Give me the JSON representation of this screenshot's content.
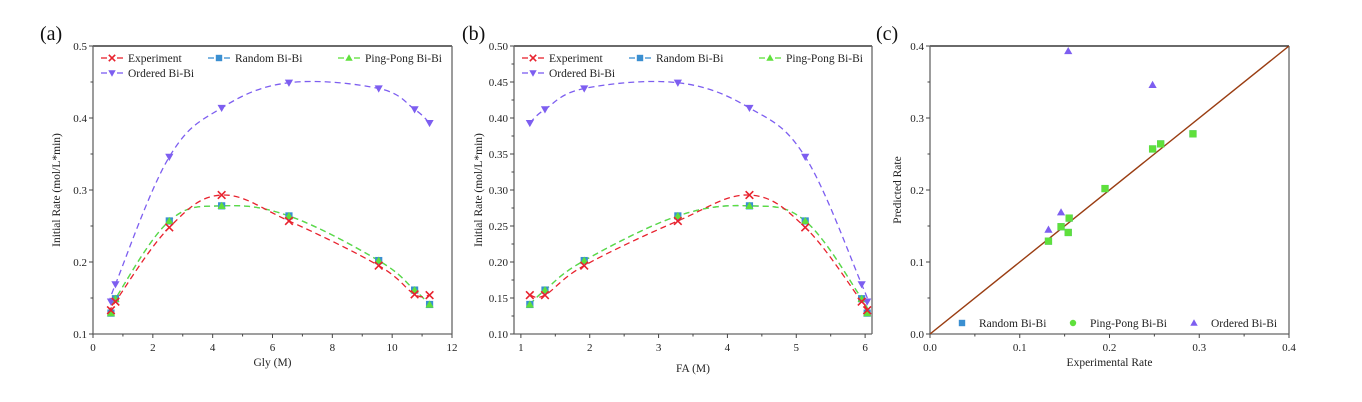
{
  "chart_data": [
    {
      "panel": "(a)",
      "type": "line",
      "title": "",
      "xlabel": "Gly (M)",
      "ylabel": "Initial Rate (mol/L*min)",
      "xlim": [
        0,
        12
      ],
      "ylim": [
        0.1,
        0.5
      ],
      "xticks": [
        0,
        2,
        4,
        6,
        8,
        10,
        12
      ],
      "xtick_labels": [
        "0",
        "2",
        "4",
        "6",
        "8",
        "10",
        "12"
      ],
      "yticks": [
        0.1,
        0.2,
        0.3,
        0.4,
        0.5
      ],
      "ytick_labels": [
        "0.1",
        "0.2",
        "0.3",
        "0.4",
        "0.5"
      ],
      "grid": false,
      "legend_position": "top",
      "series": [
        {
          "name": "Experiment",
          "marker": "x",
          "color": "#e8222e",
          "x": [
            0.6,
            0.75,
            2.55,
            4.3,
            6.55,
            9.55,
            10.75,
            11.25
          ],
          "y": [
            0.133,
            0.145,
            0.248,
            0.293,
            0.257,
            0.195,
            0.155,
            0.154
          ]
        },
        {
          "name": "Random Bi-Bi",
          "marker": "square",
          "color": "#3a8fd1",
          "x": [
            0.6,
            0.75,
            2.55,
            4.3,
            6.55,
            9.55,
            10.75,
            11.25
          ],
          "y": [
            0.129,
            0.149,
            0.257,
            0.278,
            0.264,
            0.202,
            0.161,
            0.141
          ]
        },
        {
          "name": "Ping-Pong Bi-Bi",
          "marker": "triangle-up",
          "color": "#5fe03c",
          "x": [
            0.6,
            0.75,
            2.55,
            4.3,
            6.55,
            9.55,
            10.75,
            11.25
          ],
          "y": [
            0.129,
            0.149,
            0.257,
            0.278,
            0.264,
            0.202,
            0.161,
            0.141
          ]
        },
        {
          "name": "Ordered Bi-Bi",
          "marker": "triangle-down",
          "color": "#7d5ef0",
          "x": [
            0.6,
            0.75,
            2.55,
            4.3,
            6.55,
            9.55,
            10.75,
            11.25
          ],
          "y": [
            0.145,
            0.169,
            0.346,
            0.414,
            0.449,
            0.441,
            0.412,
            0.393
          ]
        }
      ]
    },
    {
      "panel": "(b)",
      "type": "line",
      "title": "",
      "xlabel": "FA (M)",
      "ylabel": "Initial Rate (mol/L*min)",
      "xlim": [
        0.9,
        6.1
      ],
      "ylim": [
        0.1,
        0.5
      ],
      "xticks": [
        1,
        2,
        3,
        4,
        5,
        6
      ],
      "xtick_labels": [
        "1",
        "2",
        "3",
        "4",
        "5",
        "6"
      ],
      "yticks": [
        0.1,
        0.15,
        0.2,
        0.25,
        0.3,
        0.35,
        0.4,
        0.45,
        0.5
      ],
      "ytick_labels": [
        "0.10",
        "0.15",
        "0.20",
        "0.25",
        "0.30",
        "0.35",
        "0.40",
        "0.45",
        "0.50"
      ],
      "grid": false,
      "legend_position": "top",
      "series": [
        {
          "name": "Experiment",
          "marker": "x",
          "color": "#e8222e",
          "x": [
            1.13,
            1.35,
            1.92,
            3.28,
            4.32,
            5.13,
            5.95,
            6.03
          ],
          "y": [
            0.154,
            0.154,
            0.195,
            0.257,
            0.293,
            0.248,
            0.145,
            0.133
          ]
        },
        {
          "name": "Random Bi-Bi",
          "marker": "square",
          "color": "#3a8fd1",
          "x": [
            1.13,
            1.35,
            1.92,
            3.28,
            4.32,
            5.13,
            5.95,
            6.03
          ],
          "y": [
            0.141,
            0.161,
            0.202,
            0.264,
            0.278,
            0.257,
            0.149,
            0.129
          ]
        },
        {
          "name": "Ping-Pong Bi-Bi",
          "marker": "triangle-up",
          "color": "#5fe03c",
          "x": [
            1.13,
            1.35,
            1.92,
            3.28,
            4.32,
            5.13,
            5.95,
            6.03
          ],
          "y": [
            0.141,
            0.161,
            0.202,
            0.264,
            0.278,
            0.257,
            0.149,
            0.129
          ]
        },
        {
          "name": "Ordered Bi-Bi",
          "marker": "triangle-down",
          "color": "#7d5ef0",
          "x": [
            1.13,
            1.35,
            1.92,
            3.28,
            4.32,
            5.13,
            5.95,
            6.03
          ],
          "y": [
            0.393,
            0.412,
            0.441,
            0.449,
            0.414,
            0.346,
            0.169,
            0.145
          ]
        }
      ]
    },
    {
      "panel": "(c)",
      "type": "scatter",
      "title": "",
      "xlabel": "Experimental Rate",
      "ylabel": "Predicted Rate",
      "xlim": [
        0,
        0.4
      ],
      "ylim": [
        0,
        0.4
      ],
      "xticks": [
        0,
        0.1,
        0.2,
        0.3,
        0.4
      ],
      "xtick_labels": [
        "0.0",
        "0.1",
        "0.2",
        "0.3",
        "0.4"
      ],
      "yticks": [
        0,
        0.1,
        0.2,
        0.3,
        0.4
      ],
      "ytick_labels": [
        "0.0",
        "0.1",
        "0.2",
        "0.3",
        "0.4"
      ],
      "grid": false,
      "legend_position": "bottom",
      "reference_line": {
        "name": "y = x",
        "color": "#9a3d12",
        "from": [
          0,
          0
        ],
        "to": [
          0.4,
          0.4
        ]
      },
      "series": [
        {
          "name": "Random Bi-Bi",
          "marker": "square",
          "color": "#3a8fd1",
          "x": [
            0.132,
            0.146,
            0.154,
            0.155,
            0.195,
            0.248,
            0.257,
            0.293
          ],
          "y": [
            0.129,
            0.149,
            0.141,
            0.161,
            0.202,
            0.257,
            0.264,
            0.278
          ]
        },
        {
          "name": "Ping-Pong Bi-Bi",
          "marker": "circle",
          "color": "#5fe03c",
          "x": [
            0.132,
            0.146,
            0.154,
            0.155,
            0.195,
            0.248,
            0.257,
            0.293
          ],
          "y": [
            0.129,
            0.149,
            0.141,
            0.161,
            0.202,
            0.257,
            0.264,
            0.278
          ]
        },
        {
          "name": "Ordered Bi-Bi",
          "marker": "triangle-up",
          "color": "#7d5ef0",
          "x": [
            0.132,
            0.146,
            0.154,
            0.248
          ],
          "y": [
            0.145,
            0.169,
            0.393,
            0.346
          ]
        }
      ]
    }
  ]
}
